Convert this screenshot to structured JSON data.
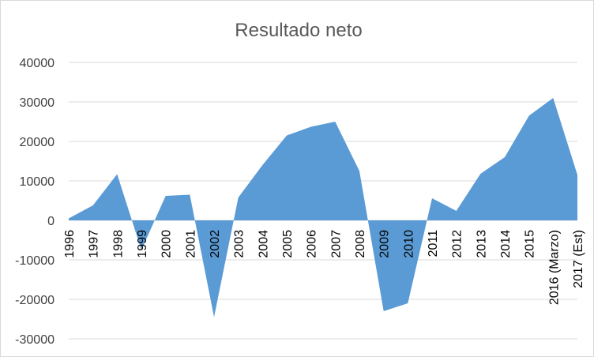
{
  "chart_data": {
    "type": "area",
    "title": "Resultado neto",
    "xlabel": "",
    "ylabel": "",
    "ylim": [
      -30000,
      40000
    ],
    "yticks": [
      40000,
      30000,
      20000,
      10000,
      0,
      -10000,
      -20000,
      -30000
    ],
    "grid": true,
    "legend": "none",
    "color": "#5b9bd5",
    "categories": [
      "1996",
      "1997",
      "1998",
      "1999",
      "2000",
      "2001",
      "2002",
      "2003",
      "2004",
      "2005",
      "2006",
      "2007",
      "2008",
      "2009",
      "2010",
      "2011",
      "2012",
      "2013",
      "2014",
      "2015",
      "2016 (Marzo)",
      "2017 (Est)"
    ],
    "values": [
      500,
      3800,
      11700,
      -7500,
      6200,
      6500,
      -24500,
      5800,
      14000,
      21500,
      23700,
      25000,
      12500,
      -23000,
      -21000,
      5600,
      2400,
      11800,
      16000,
      26500,
      31000,
      11500
    ]
  }
}
